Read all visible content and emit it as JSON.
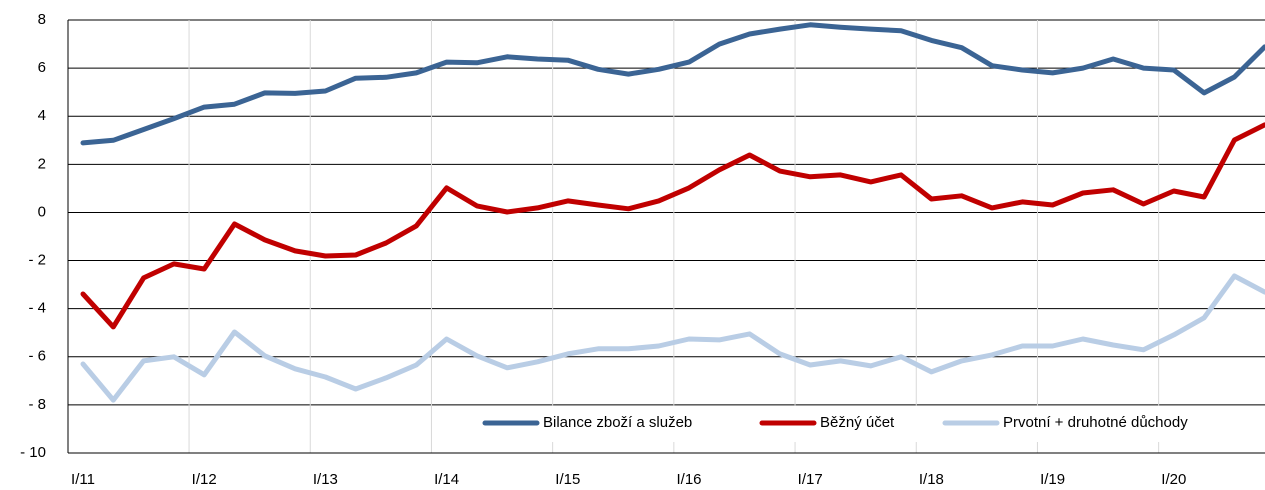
{
  "chart_data": {
    "type": "line",
    "categories": [
      "I/11",
      null,
      null,
      null,
      "I/12",
      null,
      null,
      null,
      "I/13",
      null,
      null,
      null,
      "I/14",
      null,
      null,
      null,
      "I/15",
      null,
      null,
      null,
      "I/16",
      null,
      null,
      null,
      "I/17",
      null,
      null,
      null,
      "I/18",
      null,
      null,
      null,
      "I/19",
      null,
      null,
      null,
      "I/20",
      null,
      null,
      null
    ],
    "series": [
      {
        "name": "Bilance zboží a služeb",
        "color": "#3b6494",
        "values": [
          2.89,
          3.0,
          3.45,
          3.9,
          4.38,
          4.5,
          4.97,
          4.95,
          5.05,
          5.58,
          5.62,
          5.8,
          6.25,
          6.22,
          6.47,
          6.38,
          6.33,
          5.95,
          5.75,
          5.95,
          6.25,
          7.0,
          7.42,
          7.62,
          7.8,
          7.7,
          7.62,
          7.55,
          7.15,
          6.85,
          6.1,
          5.92,
          5.8,
          6.0,
          6.38,
          6.0,
          5.92,
          4.97,
          5.63,
          6.88
        ]
      },
      {
        "name": "Běžný účet",
        "color": "#c00000",
        "values": [
          -3.39,
          -4.76,
          -2.72,
          -2.14,
          -2.35,
          -0.48,
          -1.14,
          -1.6,
          -1.81,
          -1.77,
          -1.27,
          -0.56,
          1.02,
          0.27,
          0.02,
          0.19,
          0.48,
          0.31,
          0.15,
          0.48,
          1.02,
          1.77,
          2.39,
          1.72,
          1.48,
          1.56,
          1.27,
          1.56,
          0.56,
          0.69,
          0.19,
          0.44,
          0.31,
          0.81,
          0.94,
          0.35,
          0.89,
          0.64,
          3.01,
          3.64
        ]
      },
      {
        "name": "Prvotní + druhotné důchody",
        "color": "#b9cde5",
        "values": [
          -6.3,
          -7.8,
          -6.17,
          -6.0,
          -6.75,
          -4.97,
          -5.96,
          -6.5,
          -6.84,
          -7.34,
          -6.88,
          -6.34,
          -5.26,
          -5.96,
          -6.46,
          -6.21,
          -5.88,
          -5.67,
          -5.67,
          -5.55,
          -5.26,
          -5.3,
          -5.05,
          -5.88,
          -6.34,
          -6.17,
          -6.38,
          -6.0,
          -6.63,
          -6.17,
          -5.92,
          -5.55,
          -5.55,
          -5.26,
          -5.51,
          -5.71,
          -5.09,
          -4.38,
          -2.64,
          -3.31
        ]
      }
    ],
    "ylim": [
      -10,
      8
    ],
    "yticks": [
      {
        "value": -10,
        "label": "- 10"
      },
      {
        "value": -8,
        "label": "- 8"
      },
      {
        "value": -6,
        "label": "- 6"
      },
      {
        "value": -4,
        "label": "- 4"
      },
      {
        "value": -2,
        "label": "- 2"
      },
      0,
      2,
      4,
      6,
      8
    ],
    "grid": true,
    "legend": "lower right"
  }
}
